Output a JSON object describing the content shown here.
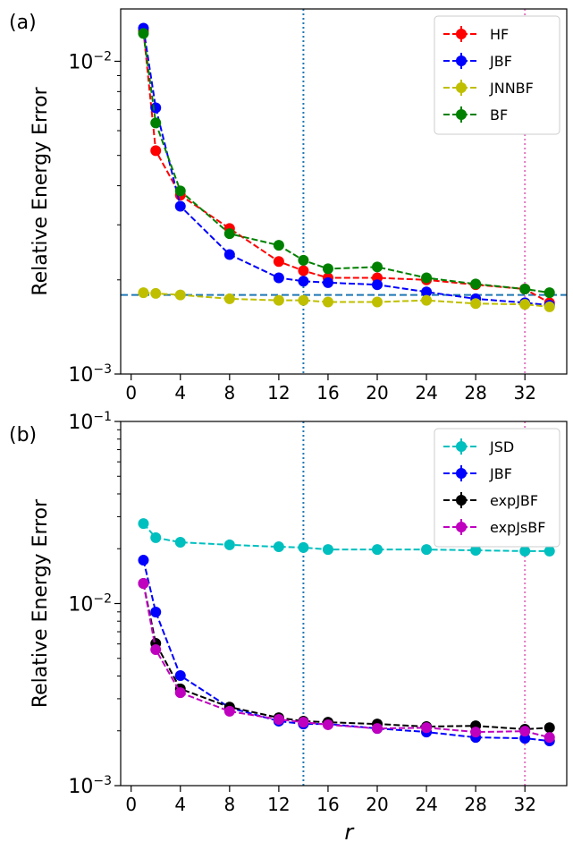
{
  "chart_data": [
    {
      "type": "line",
      "label": "(a)",
      "y_label": "Relative Energy Error",
      "log_y": true,
      "legend": "upper right",
      "x": [
        1,
        2,
        4,
        8,
        12,
        14,
        16,
        20,
        24,
        28,
        32,
        34
      ],
      "xlim": [
        -0.85,
        35.4
      ],
      "xticks": [
        0,
        4,
        8,
        12,
        16,
        20,
        24,
        28,
        32
      ],
      "ylim": [
        0.001,
        0.0147
      ],
      "yticks": [
        {
          "value": 0.001,
          "label": "10−3"
        },
        {
          "value": 0.01,
          "label": "10−2"
        }
      ],
      "vlines": [
        {
          "x": 14,
          "color": "#1f77b4"
        },
        {
          "x": 32,
          "color": "#e377c2"
        }
      ],
      "hlines": [
        {
          "y": 0.00179,
          "color": "#1f77b4"
        }
      ],
      "series": [
        {
          "name": "HF",
          "color": "#ff0000",
          "values": [
            0.0125,
            0.00518,
            0.00373,
            0.00292,
            0.00229,
            0.00214,
            0.00203,
            0.00203,
            0.002,
            0.00193,
            0.00187,
            0.00169
          ]
        },
        {
          "name": "JBF",
          "color": "#0000ff",
          "values": [
            0.01276,
            0.0071,
            0.00344,
            0.00241,
            0.00203,
            0.00198,
            0.00196,
            0.00193,
            0.00183,
            0.00174,
            0.00169,
            0.00166
          ]
        },
        {
          "name": "JNNBF",
          "color": "#bfbf00",
          "values": [
            0.00182,
            0.00181,
            0.00179,
            0.00174,
            0.00172,
            0.00172,
            0.0017,
            0.0017,
            0.00172,
            0.00168,
            0.00167,
            0.00164
          ]
        },
        {
          "name": "BF",
          "color": "#008000",
          "values": [
            0.01227,
            0.00635,
            0.00385,
            0.00281,
            0.00258,
            0.00231,
            0.00217,
            0.0022,
            0.00203,
            0.00194,
            0.00187,
            0.00182
          ]
        }
      ]
    },
    {
      "type": "line",
      "label": "(b)",
      "y_label": "Relative Energy Error",
      "x_label": "r",
      "log_y": true,
      "legend": "upper right",
      "x": [
        1,
        2,
        4,
        8,
        12,
        14,
        16,
        20,
        24,
        28,
        32,
        34
      ],
      "xlim": [
        -0.85,
        35.4
      ],
      "xticks": [
        0,
        4,
        8,
        12,
        16,
        20,
        24,
        28,
        32
      ],
      "ylim": [
        0.001,
        0.1
      ],
      "yticks": [
        {
          "value": 0.001,
          "label": "10−3"
        },
        {
          "value": 0.01,
          "label": "10−2"
        },
        {
          "value": 0.1,
          "label": "10−1"
        }
      ],
      "vlines": [
        {
          "x": 14,
          "color": "#1f77b4"
        },
        {
          "x": 32,
          "color": "#e377c2"
        }
      ],
      "series": [
        {
          "name": "JSD",
          "color": "#00bfbf",
          "values": [
            0.0275,
            0.023,
            0.0217,
            0.021,
            0.0205,
            0.0203,
            0.0198,
            0.0198,
            0.0198,
            0.0196,
            0.0194,
            0.0194
          ]
        },
        {
          "name": "JBF",
          "color": "#0000ff",
          "values": [
            0.0173,
            0.00898,
            0.00402,
            0.00268,
            0.00226,
            0.00218,
            0.00218,
            0.00206,
            0.00197,
            0.00184,
            0.00182,
            0.00176
          ]
        },
        {
          "name": "expJBF",
          "color": "#000000",
          "values": [
            0.0129,
            0.00604,
            0.0034,
            0.0027,
            0.00236,
            0.00226,
            0.00223,
            0.00218,
            0.00211,
            0.00213,
            0.00204,
            0.00208
          ]
        },
        {
          "name": "expJsBF",
          "color": "#bf00bf",
          "values": [
            0.0129,
            0.00558,
            0.00324,
            0.00256,
            0.00231,
            0.00223,
            0.00216,
            0.00206,
            0.00208,
            0.00197,
            0.00199,
            0.00184
          ]
        }
      ]
    }
  ]
}
